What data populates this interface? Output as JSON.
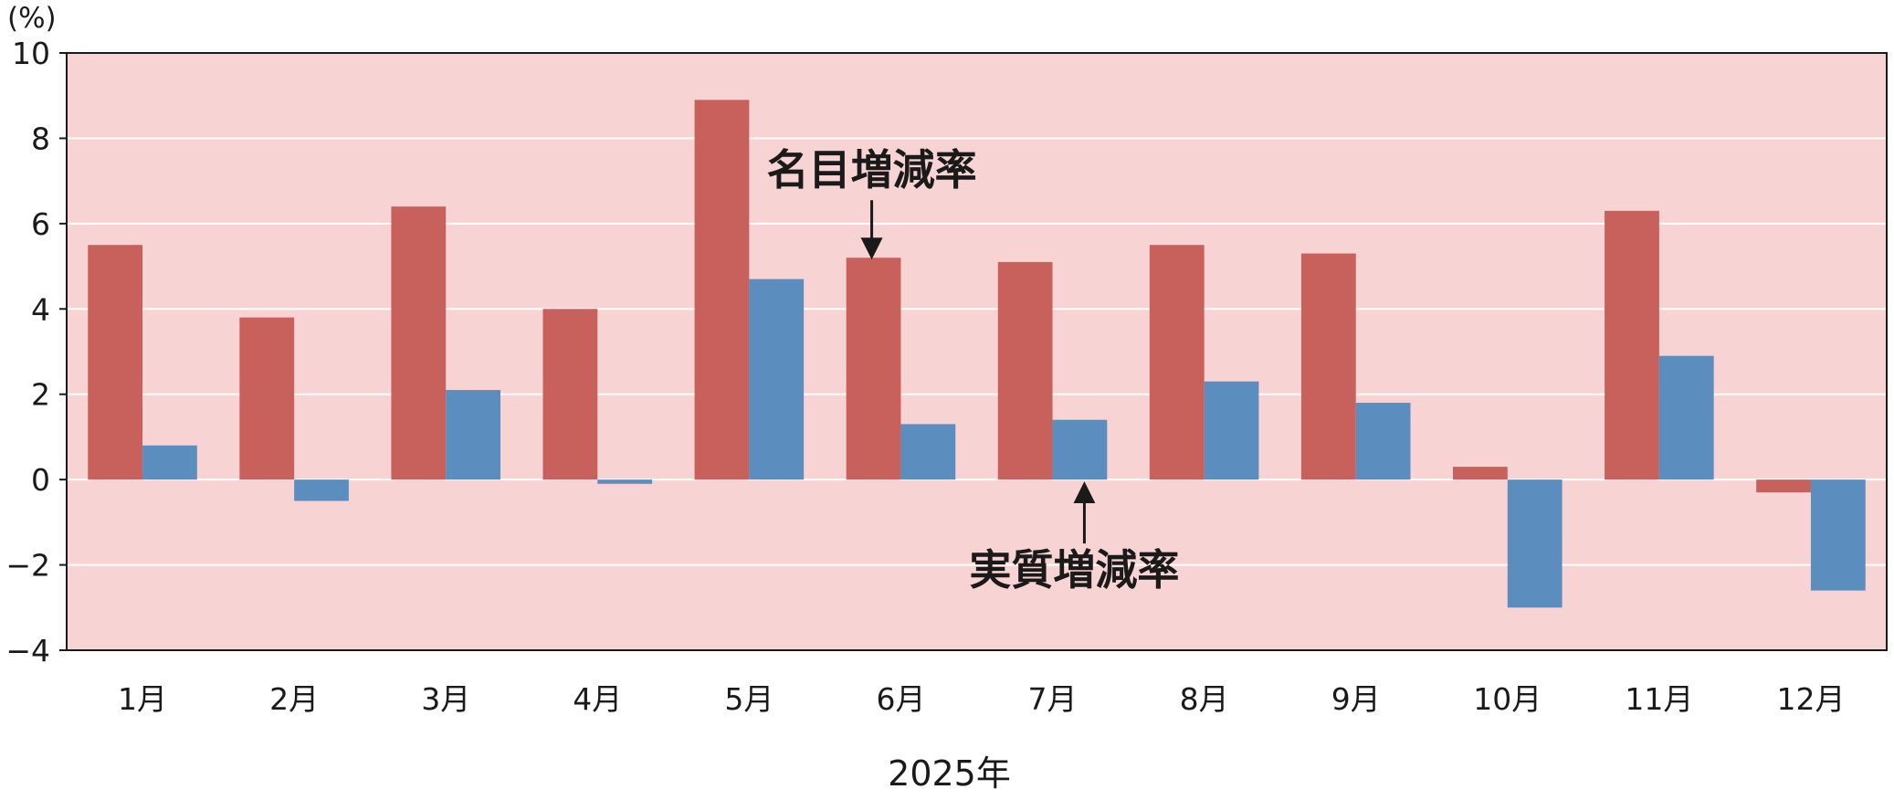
{
  "chart_data": {
    "type": "bar",
    "title": "",
    "ylabel": "(%)",
    "xlabel": "2025年",
    "ylim": [
      -4,
      10
    ],
    "yticks": [
      "10",
      "8",
      "6",
      "4",
      "2",
      "0",
      "−2",
      "−4"
    ],
    "ytick_values": [
      10,
      8,
      6,
      4,
      2,
      0,
      -2,
      -4
    ],
    "categories": [
      "1月",
      "2月",
      "3月",
      "4月",
      "5月",
      "6月",
      "7月",
      "8月",
      "9月",
      "10月",
      "11月",
      "12月"
    ],
    "series": [
      {
        "name": "名目増減率",
        "color": "#c8605c",
        "values": [
          5.5,
          3.8,
          6.4,
          4.0,
          8.9,
          5.2,
          5.1,
          5.5,
          5.3,
          0.3,
          6.3,
          -0.3
        ]
      },
      {
        "name": "実質増減率",
        "color": "#5b8dbf",
        "values": [
          0.8,
          -0.5,
          2.1,
          -0.1,
          4.7,
          1.3,
          1.4,
          2.3,
          1.8,
          -3.0,
          2.9,
          -2.6
        ]
      }
    ],
    "plot_background": "#f8d3d4",
    "grid": true,
    "annotations": [
      {
        "text": "名目増減率",
        "series": 0,
        "category": "6月",
        "placement": "above"
      },
      {
        "text": "実質増減率",
        "series": 1,
        "category": "7月",
        "placement": "below"
      }
    ]
  }
}
